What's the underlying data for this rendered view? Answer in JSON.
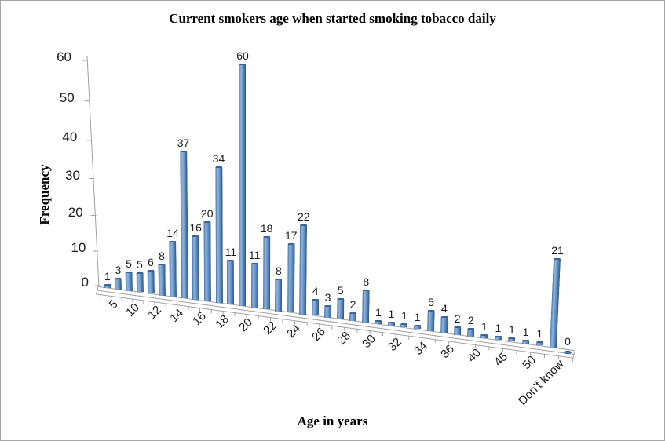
{
  "chart_data": {
    "type": "bar",
    "style": "3d-column",
    "title": "Current smokers age when started smoking tobacco daily",
    "xlabel": "Age in years",
    "ylabel": "Frequency",
    "categories": [
      "5",
      "",
      "10",
      "",
      "12",
      "",
      "14",
      "",
      "16",
      "",
      "18",
      "",
      "20",
      "",
      "22",
      "",
      "24",
      "",
      "26",
      "",
      "28",
      "",
      "30",
      "",
      "32",
      "",
      "34",
      "",
      "36",
      "",
      "40",
      "",
      "45",
      "",
      "50",
      "",
      "Don’t know",
      ""
    ],
    "values": [
      1,
      3,
      5,
      5,
      6,
      8,
      14,
      37,
      16,
      20,
      34,
      11,
      60,
      11,
      18,
      8,
      17,
      22,
      4,
      3,
      5,
      2,
      8,
      1,
      1,
      1,
      1,
      5,
      4,
      2,
      2,
      1,
      1,
      1,
      1,
      1,
      21,
      0
    ],
    "data_labels_shown": true,
    "y_ticks": [
      0,
      10,
      20,
      30,
      40,
      50,
      60
    ],
    "ylim": [
      0,
      60
    ],
    "grid": "off",
    "legend": "none",
    "bar_color": "#4f81bd",
    "bar_highlight": "#8fb3dc",
    "bar_shadow": "#305480",
    "axis_color": "#a0a0a0",
    "text_color": "#1c1c1c"
  }
}
